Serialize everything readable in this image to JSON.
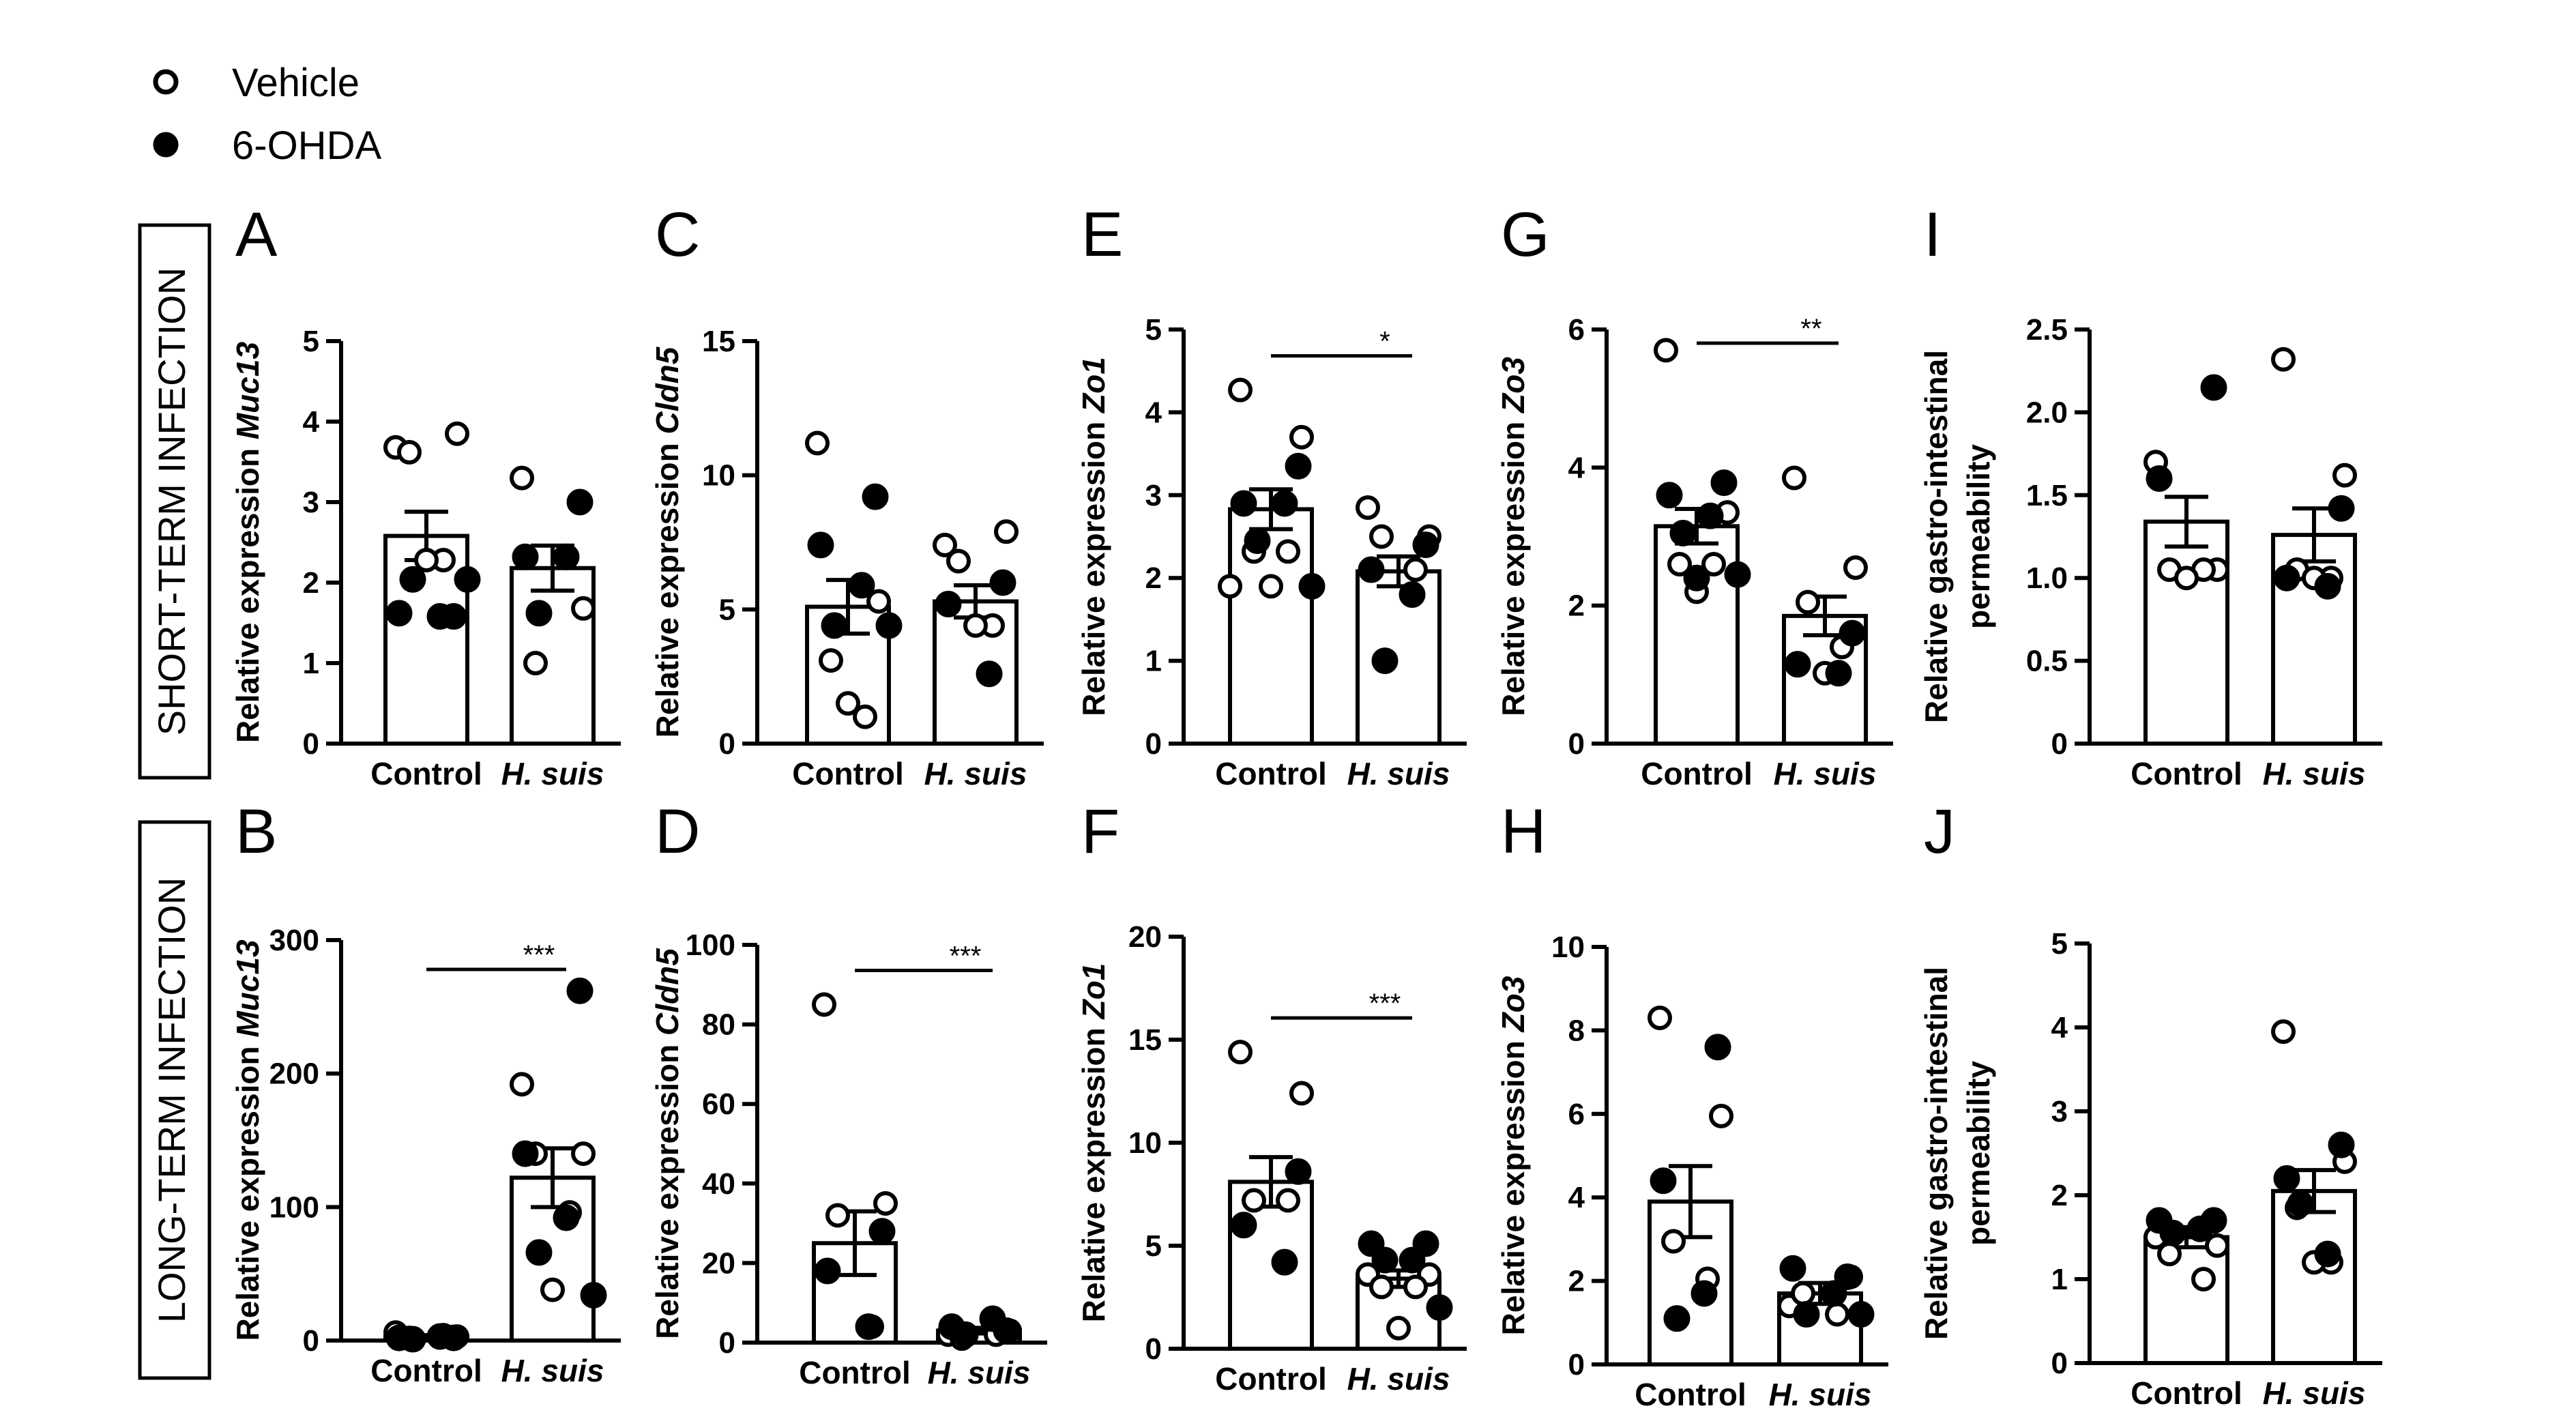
{
  "legend": [
    {
      "label": "Vehicle",
      "symbol": "open-circle"
    },
    {
      "label": "6-OHDA",
      "symbol": "filled-circle"
    }
  ],
  "row_labels": {
    "short": "SHORT-TERM INFECTION",
    "long": "LONG-TERM INFECTION"
  },
  "x_categories": [
    "Control",
    "H. suis"
  ],
  "colors": {
    "ink": "#000000",
    "open_fill": "#ffffff"
  },
  "chart_data": [
    {
      "id": "A",
      "panel_letter": "A",
      "type": "bar",
      "ylabel_prefix": "Relative expression ",
      "ylabel_gene": "Muc13",
      "ylim": [
        0,
        5
      ],
      "yticks": [
        "0",
        "1",
        "2",
        "3",
        "4",
        "5"
      ],
      "means": [
        2.58,
        2.18
      ],
      "sem": [
        0.3,
        0.28
      ],
      "sig": "",
      "points": [
        {
          "vehicle": [
            3.68,
            3.85,
            3.62,
            2.28,
            2.28
          ],
          "ohda": [
            1.58,
            1.62,
            1.58,
            2.04,
            2.04
          ]
        },
        {
          "vehicle": [
            3.3,
            1.68,
            1.0
          ],
          "ohda": [
            3.0,
            2.32,
            2.32,
            1.62
          ]
        }
      ]
    },
    {
      "id": "B",
      "panel_letter": "B",
      "type": "bar",
      "ylabel_prefix": "Relative expression ",
      "ylabel_gene": "Muc13",
      "ylim": [
        0,
        300
      ],
      "yticks": [
        "0",
        "100",
        "200",
        "300"
      ],
      "means": [
        3,
        122
      ],
      "sem": [
        1,
        22
      ],
      "sig": "***",
      "points": [
        {
          "vehicle": [
            6,
            3,
            2,
            4
          ],
          "ohda": [
            2,
            2,
            3,
            1
          ]
        },
        {
          "vehicle": [
            192,
            140,
            140,
            96,
            38
          ],
          "ohda": [
            262,
            140,
            92,
            66,
            34
          ]
        }
      ]
    },
    {
      "id": "C",
      "panel_letter": "C",
      "type": "bar",
      "ylabel_prefix": "Relative expression ",
      "ylabel_gene": "Cldn5",
      "ylim": [
        0,
        15
      ],
      "yticks": [
        "0",
        "5",
        "10",
        "15"
      ],
      "means": [
        5.1,
        5.3
      ],
      "sem": [
        1.0,
        0.6
      ],
      "sig": "",
      "points": [
        {
          "vehicle": [
            11.2,
            5.3,
            3.1,
            1.0,
            1.5
          ],
          "ohda": [
            9.2,
            7.4,
            5.9,
            4.4,
            4.4
          ]
        },
        {
          "vehicle": [
            7.4,
            7.9,
            6.8,
            4.4,
            4.4
          ],
          "ohda": [
            6.0,
            5.2,
            2.6
          ]
        }
      ]
    },
    {
      "id": "D",
      "panel_letter": "D",
      "type": "bar",
      "ylabel_prefix": "Relative expression ",
      "ylabel_gene": "Cldn5",
      "ylim": [
        0,
        100
      ],
      "yticks": [
        "0",
        "20",
        "40",
        "60",
        "80",
        "100"
      ],
      "means": [
        25,
        3
      ],
      "sem": [
        8,
        0.7
      ],
      "sig": "***",
      "points": [
        {
          "vehicle": [
            85,
            35,
            32,
            4
          ],
          "ohda": [
            28,
            18,
            4
          ]
        },
        {
          "vehicle": [
            2,
            3,
            1,
            2
          ],
          "ohda": [
            3,
            4,
            6,
            2
          ]
        }
      ]
    },
    {
      "id": "E",
      "panel_letter": "E",
      "type": "bar",
      "ylabel_prefix": "Relative expression ",
      "ylabel_gene": "Zo1",
      "ylim": [
        0,
        5
      ],
      "yticks": [
        "0",
        "1",
        "2",
        "3",
        "4",
        "5"
      ],
      "means": [
        2.83,
        2.08
      ],
      "sem": [
        0.24,
        0.18
      ],
      "sig": "*",
      "points": [
        {
          "vehicle": [
            4.27,
            3.7,
            2.32,
            2.32,
            1.9,
            1.9
          ],
          "ohda": [
            3.35,
            2.9,
            2.9,
            2.45,
            1.9
          ]
        },
        {
          "vehicle": [
            2.85,
            2.5,
            2.5,
            2.1
          ],
          "ohda": [
            2.4,
            2.1,
            1.8,
            1.0
          ]
        }
      ]
    },
    {
      "id": "F",
      "panel_letter": "F",
      "type": "bar",
      "ylabel_prefix": "Relative expression ",
      "ylabel_gene": "Zo1",
      "ylim": [
        0,
        20
      ],
      "yticks": [
        "0",
        "5",
        "10",
        "15",
        "20"
      ],
      "means": [
        8.1,
        3.4
      ],
      "sem": [
        1.2,
        0.4
      ],
      "sig": "***",
      "points": [
        {
          "vehicle": [
            14.4,
            12.4,
            7.2,
            7.2
          ],
          "ohda": [
            8.6,
            6.0,
            4.2
          ]
        },
        {
          "vehicle": [
            3.6,
            3.6,
            3.0,
            3.0,
            1.0
          ],
          "ohda": [
            5.1,
            5.1,
            4.3,
            4.3,
            2.0
          ]
        }
      ]
    },
    {
      "id": "G",
      "panel_letter": "G",
      "type": "bar",
      "ylabel_prefix": "Relative expression ",
      "ylabel_gene": "Zo3",
      "ylim": [
        0,
        6
      ],
      "yticks": [
        "0",
        "2",
        "4",
        "6"
      ],
      "means": [
        3.15,
        1.85
      ],
      "sem": [
        0.25,
        0.28
      ],
      "sig": "**",
      "points": [
        {
          "vehicle": [
            5.7,
            3.35,
            2.6,
            2.6,
            2.2
          ],
          "ohda": [
            3.78,
            3.6,
            3.3,
            3.05,
            2.45,
            2.4
          ]
        },
        {
          "vehicle": [
            3.85,
            2.55,
            2.05,
            1.4,
            1.02
          ],
          "ohda": [
            1.6,
            1.15,
            1.02
          ]
        }
      ]
    },
    {
      "id": "H",
      "panel_letter": "H",
      "type": "bar",
      "ylabel_prefix": "Relative expression ",
      "ylabel_gene": "Zo3",
      "ylim": [
        0,
        10
      ],
      "yticks": [
        "0",
        "2",
        "4",
        "6",
        "8",
        "10"
      ],
      "means": [
        3.9,
        1.7
      ],
      "sem": [
        0.85,
        0.25
      ],
      "sig": "",
      "points": [
        {
          "vehicle": [
            8.3,
            5.95,
            2.95,
            2.05
          ],
          "ohda": [
            7.6,
            4.4,
            1.7,
            1.1
          ]
        },
        {
          "vehicle": [
            1.4,
            2.1,
            1.7,
            1.2
          ],
          "ohda": [
            2.1,
            2.3,
            1.7,
            1.2,
            1.2
          ]
        }
      ]
    },
    {
      "id": "I",
      "panel_letter": "I",
      "type": "bar",
      "ylabel_lines": [
        "Relative gastro-intestinal",
        "permeability"
      ],
      "ylim": [
        0,
        2.5
      ],
      "yticks": [
        "0",
        "0.5",
        "1.0",
        "1.5",
        "2.0",
        "2.5"
      ],
      "means": [
        1.34,
        1.26
      ],
      "sem": [
        0.15,
        0.16
      ],
      "sig": "",
      "points": [
        {
          "vehicle": [
            1.7,
            1.05,
            1.05,
            1.05,
            1.0
          ],
          "ohda": [
            2.15,
            1.6
          ]
        },
        {
          "vehicle": [
            2.32,
            1.62,
            1.05,
            1.0,
            1.0
          ],
          "ohda": [
            1.42,
            1.0,
            0.95
          ]
        }
      ]
    },
    {
      "id": "J",
      "panel_letter": "J",
      "type": "bar",
      "ylabel_lines": [
        "Relative gastro-intestinal",
        "permeability"
      ],
      "ylim": [
        0,
        5
      ],
      "yticks": [
        "0",
        "1",
        "2",
        "3",
        "4",
        "5"
      ],
      "means": [
        1.5,
        2.05
      ],
      "sem": [
        0.12,
        0.25
      ],
      "sig": "",
      "points": [
        {
          "vehicle": [
            1.5,
            1.4,
            1.3,
            1.0
          ],
          "ohda": [
            1.7,
            1.7,
            1.6,
            1.55
          ]
        },
        {
          "vehicle": [
            3.95,
            2.4,
            1.85,
            1.2,
            1.2
          ],
          "ohda": [
            2.6,
            2.2,
            1.3,
            1.9
          ]
        }
      ]
    }
  ]
}
